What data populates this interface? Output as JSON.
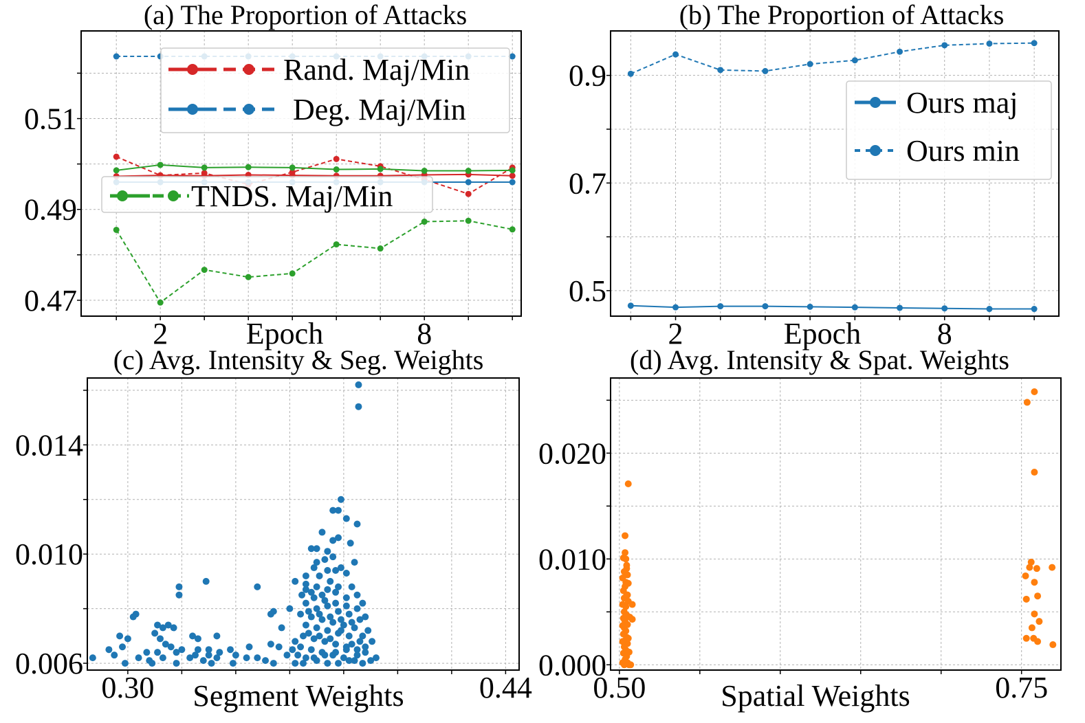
{
  "colors": {
    "red": "#d62728",
    "blue": "#1f77b4",
    "green": "#2ca02c",
    "orange": "#ff7f0e"
  },
  "chart_data": [
    {
      "type": "line",
      "title": "(a) The Proportion of Attacks",
      "xlabel": "Epoch",
      "ylabel": "",
      "x": [
        1,
        2,
        3,
        4,
        5,
        6,
        7,
        8,
        9,
        10
      ],
      "xticks": [
        "2",
        "8"
      ],
      "xtick_values": [
        2,
        8
      ],
      "yticks": [
        "0.47",
        "0.49",
        "0.51"
      ],
      "ytick_values": [
        0.47,
        0.49,
        0.51
      ],
      "xlim": [
        0.2,
        10.2
      ],
      "ylim": [
        0.4665,
        0.5293
      ],
      "grid": true,
      "legend": [
        "Rand. Maj/Min",
        "Deg. Maj/Min",
        "TNDS. Maj/Min"
      ],
      "series": [
        {
          "color": "red",
          "style": "solid",
          "values": [
            0.4973,
            0.4975,
            0.4974,
            0.4976,
            0.4975,
            0.4974,
            0.4974,
            0.4976,
            0.4977,
            0.4974
          ]
        },
        {
          "color": "red",
          "style": "dashed",
          "values": [
            0.5016,
            0.4975,
            0.498,
            0.4955,
            0.4982,
            0.5011,
            0.4995,
            0.4966,
            0.4934,
            0.4992
          ]
        },
        {
          "color": "blue",
          "style": "solid",
          "values": [
            0.496,
            0.496,
            0.496,
            0.496,
            0.496,
            0.496,
            0.496,
            0.496,
            0.496,
            0.496
          ]
        },
        {
          "color": "blue",
          "style": "dashed",
          "values": [
            0.5237,
            0.5237,
            0.5237,
            0.5237,
            0.5237,
            0.5237,
            0.5237,
            0.5237,
            0.5237,
            0.5237
          ]
        },
        {
          "color": "green",
          "style": "solid",
          "values": [
            0.4986,
            0.4998,
            0.4992,
            0.4993,
            0.4992,
            0.4988,
            0.4989,
            0.4985,
            0.4985,
            0.4986
          ]
        },
        {
          "color": "green",
          "style": "dashed",
          "values": [
            0.4855,
            0.4695,
            0.4767,
            0.4751,
            0.4759,
            0.4823,
            0.4814,
            0.4873,
            0.4875,
            0.4856
          ]
        }
      ]
    },
    {
      "type": "line",
      "title": "(b) The Proportion of Attacks",
      "xlabel": "Epoch",
      "ylabel": "",
      "x": [
        1,
        2,
        3,
        4,
        5,
        6,
        7,
        8,
        9,
        10
      ],
      "xticks": [
        "2",
        "8"
      ],
      "xtick_values": [
        2,
        8
      ],
      "yticks": [
        "0.5",
        "0.7",
        "0.9"
      ],
      "ytick_values": [
        0.5,
        0.7,
        0.9
      ],
      "xlim": [
        0.55,
        10.55
      ],
      "ylim": [
        0.4526,
        0.9826
      ],
      "grid": true,
      "legend": [
        "Ours maj",
        "Ours min"
      ],
      "series": [
        {
          "name": "Ours maj",
          "color": "blue",
          "style": "solid",
          "values": [
            0.472,
            0.469,
            0.471,
            0.471,
            0.47,
            0.469,
            0.468,
            0.467,
            0.466,
            0.466
          ]
        },
        {
          "name": "Ours min",
          "color": "blue",
          "style": "dashed",
          "values": [
            0.903,
            0.939,
            0.91,
            0.908,
            0.921,
            0.928,
            0.944,
            0.956,
            0.959,
            0.96
          ]
        }
      ]
    },
    {
      "type": "scatter",
      "title": "(c) Avg. Intensity & Seg. Weights",
      "xlabel": "Segment Weights",
      "ylabel": "",
      "xticks": [
        "0.30",
        "0.44"
      ],
      "xtick_values": [
        0.3,
        0.44
      ],
      "yticks": [
        "0.006",
        "0.010",
        "0.014"
      ],
      "ytick_values": [
        0.006,
        0.01,
        0.014
      ],
      "xlim": [
        0.285,
        0.445
      ],
      "ylim": [
        0.00575,
        0.01645
      ],
      "grid": true,
      "color": "blue",
      "points": [
        [
          0.3855,
          0.0162
        ],
        [
          0.3855,
          0.0154
        ],
        [
          0.379,
          0.012
        ],
        [
          0.378,
          0.0116
        ],
        [
          0.376,
          0.0116
        ],
        [
          0.381,
          0.0113
        ],
        [
          0.385,
          0.0111
        ],
        [
          0.372,
          0.0108
        ],
        [
          0.376,
          0.0105
        ],
        [
          0.378,
          0.0106
        ],
        [
          0.3825,
          0.0104
        ],
        [
          0.37,
          0.0102
        ],
        [
          0.368,
          0.0102
        ],
        [
          0.374,
          0.0101
        ],
        [
          0.37,
          0.0097
        ],
        [
          0.373,
          0.0098
        ],
        [
          0.379,
          0.0095
        ],
        [
          0.384,
          0.0097
        ],
        [
          0.377,
          0.0094
        ],
        [
          0.381,
          0.0093
        ],
        [
          0.371,
          0.0092
        ],
        [
          0.362,
          0.009
        ],
        [
          0.366,
          0.0089
        ],
        [
          0.375,
          0.009
        ],
        [
          0.383,
          0.0088
        ],
        [
          0.3645,
          0.0085
        ],
        [
          0.368,
          0.0086
        ],
        [
          0.372,
          0.0085
        ],
        [
          0.377,
          0.0086
        ],
        [
          0.381,
          0.0084
        ],
        [
          0.385,
          0.0085
        ],
        [
          0.387,
          0.0082
        ],
        [
          0.388,
          0.0077
        ],
        [
          0.36,
          0.008
        ],
        [
          0.354,
          0.0079
        ],
        [
          0.357,
          0.0073
        ],
        [
          0.362,
          0.0068
        ],
        [
          0.356,
          0.0066
        ],
        [
          0.359,
          0.0063
        ],
        [
          0.366,
          0.0082
        ],
        [
          0.37,
          0.008
        ],
        [
          0.374,
          0.0081
        ],
        [
          0.378,
          0.0079
        ],
        [
          0.382,
          0.0078
        ],
        [
          0.386,
          0.0076
        ],
        [
          0.389,
          0.0072
        ],
        [
          0.3905,
          0.0068
        ],
        [
          0.392,
          0.0062
        ],
        [
          0.364,
          0.0078
        ],
        [
          0.368,
          0.0077
        ],
        [
          0.372,
          0.0076
        ],
        [
          0.376,
          0.0075
        ],
        [
          0.38,
          0.0074
        ],
        [
          0.384,
          0.0073
        ],
        [
          0.387,
          0.007
        ],
        [
          0.366,
          0.0074
        ],
        [
          0.37,
          0.0073
        ],
        [
          0.374,
          0.0072
        ],
        [
          0.378,
          0.0071
        ],
        [
          0.382,
          0.007
        ],
        [
          0.386,
          0.0068
        ],
        [
          0.365,
          0.007
        ],
        [
          0.369,
          0.0069
        ],
        [
          0.373,
          0.0068
        ],
        [
          0.377,
          0.0067
        ],
        [
          0.381,
          0.0066
        ],
        [
          0.385,
          0.0065
        ],
        [
          0.388,
          0.0064
        ],
        [
          0.364,
          0.0066
        ],
        [
          0.368,
          0.0065
        ],
        [
          0.372,
          0.0064
        ],
        [
          0.376,
          0.0063
        ],
        [
          0.38,
          0.0062
        ],
        [
          0.384,
          0.0061
        ],
        [
          0.387,
          0.006
        ],
        [
          0.366,
          0.0062
        ],
        [
          0.37,
          0.0061
        ],
        [
          0.374,
          0.006
        ],
        [
          0.378,
          0.006
        ],
        [
          0.382,
          0.0061
        ],
        [
          0.365,
          0.006
        ],
        [
          0.369,
          0.0062
        ],
        [
          0.373,
          0.0063
        ],
        [
          0.377,
          0.0064
        ],
        [
          0.381,
          0.0065
        ],
        [
          0.385,
          0.0063
        ],
        [
          0.388,
          0.0066
        ],
        [
          0.39,
          0.0061
        ],
        [
          0.363,
          0.0063
        ],
        [
          0.362,
          0.006
        ],
        [
          0.361,
          0.0065
        ],
        [
          0.367,
          0.0071
        ],
        [
          0.371,
          0.007
        ],
        [
          0.375,
          0.0069
        ],
        [
          0.379,
          0.0072
        ],
        [
          0.383,
          0.0067
        ],
        [
          0.367,
          0.0079
        ],
        [
          0.371,
          0.0078
        ],
        [
          0.375,
          0.0077
        ],
        [
          0.379,
          0.0076
        ],
        [
          0.383,
          0.0075
        ],
        [
          0.369,
          0.0084
        ],
        [
          0.373,
          0.0083
        ],
        [
          0.377,
          0.0082
        ],
        [
          0.381,
          0.0081
        ],
        [
          0.385,
          0.008
        ],
        [
          0.37,
          0.0088
        ],
        [
          0.374,
          0.0087
        ],
        [
          0.378,
          0.0088
        ],
        [
          0.366,
          0.0087
        ],
        [
          0.376,
          0.0099
        ],
        [
          0.369,
          0.0095
        ],
        [
          0.374,
          0.0094
        ],
        [
          0.366,
          0.0092
        ],
        [
          0.319,
          0.0085
        ],
        [
          0.319,
          0.0088
        ],
        [
          0.329,
          0.009
        ],
        [
          0.348,
          0.0088
        ],
        [
          0.353,
          0.0078
        ],
        [
          0.303,
          0.0078
        ],
        [
          0.302,
          0.0077
        ],
        [
          0.311,
          0.0074
        ],
        [
          0.313,
          0.0073
        ],
        [
          0.315,
          0.0074
        ],
        [
          0.317,
          0.0073
        ],
        [
          0.324,
          0.007
        ],
        [
          0.326,
          0.0069
        ],
        [
          0.333,
          0.007
        ],
        [
          0.297,
          0.007
        ],
        [
          0.3,
          0.0069
        ],
        [
          0.31,
          0.0071
        ],
        [
          0.312,
          0.0069
        ],
        [
          0.314,
          0.0067
        ],
        [
          0.316,
          0.0066
        ],
        [
          0.32,
          0.0065
        ],
        [
          0.326,
          0.0065
        ],
        [
          0.33,
          0.0065
        ],
        [
          0.338,
          0.0065
        ],
        [
          0.345,
          0.0066
        ],
        [
          0.353,
          0.0067
        ],
        [
          0.293,
          0.0065
        ],
        [
          0.298,
          0.0066
        ],
        [
          0.307,
          0.0064
        ],
        [
          0.311,
          0.0064
        ],
        [
          0.318,
          0.0064
        ],
        [
          0.325,
          0.0063
        ],
        [
          0.33,
          0.0063
        ],
        [
          0.334,
          0.0064
        ],
        [
          0.34,
          0.0063
        ],
        [
          0.348,
          0.0062
        ],
        [
          0.287,
          0.0062
        ],
        [
          0.295,
          0.0063
        ],
        [
          0.304,
          0.0062
        ],
        [
          0.308,
          0.0061
        ],
        [
          0.313,
          0.0062
        ],
        [
          0.323,
          0.0062
        ],
        [
          0.328,
          0.0061
        ],
        [
          0.333,
          0.0062
        ],
        [
          0.344,
          0.0062
        ],
        [
          0.351,
          0.0061
        ],
        [
          0.299,
          0.006
        ],
        [
          0.309,
          0.006
        ],
        [
          0.318,
          0.006
        ],
        [
          0.331,
          0.006
        ],
        [
          0.339,
          0.006
        ],
        [
          0.354,
          0.006
        ]
      ]
    },
    {
      "type": "scatter",
      "title": "(d) Avg. Intensity & Spat. Weights",
      "xlabel": "Spatial Weights",
      "ylabel": "",
      "xticks": [
        "0.50",
        "0.75"
      ],
      "xtick_values": [
        0.5,
        0.75
      ],
      "yticks": [
        "0.000",
        "0.010",
        "0.020"
      ],
      "ytick_values": [
        0.0,
        0.01,
        0.02
      ],
      "xlim": [
        0.4945,
        0.7745
      ],
      "ylim": [
        -0.0005,
        0.0271
      ],
      "grid": true,
      "color": "orange",
      "points": [
        [
          0.5055,
          0.0171
        ],
        [
          0.5035,
          0.0122
        ],
        [
          0.5025,
          0.0101
        ],
        [
          0.504,
          0.01
        ],
        [
          0.5045,
          0.0091
        ],
        [
          0.503,
          0.0088
        ],
        [
          0.505,
          0.0085
        ],
        [
          0.502,
          0.0082
        ],
        [
          0.504,
          0.0078
        ],
        [
          0.5035,
          0.0074
        ],
        [
          0.5025,
          0.007
        ],
        [
          0.5045,
          0.0066
        ],
        [
          0.503,
          0.0063
        ],
        [
          0.5055,
          0.006
        ],
        [
          0.502,
          0.0057
        ],
        [
          0.504,
          0.0055
        ],
        [
          0.508,
          0.0057
        ],
        [
          0.5065,
          0.0045
        ],
        [
          0.508,
          0.0043
        ],
        [
          0.503,
          0.005
        ],
        [
          0.5045,
          0.0047
        ],
        [
          0.5025,
          0.0044
        ],
        [
          0.5035,
          0.0041
        ],
        [
          0.505,
          0.0038
        ],
        [
          0.503,
          0.0035
        ],
        [
          0.504,
          0.0032
        ],
        [
          0.5025,
          0.0029
        ],
        [
          0.5045,
          0.0026
        ],
        [
          0.5035,
          0.0023
        ],
        [
          0.505,
          0.002
        ],
        [
          0.503,
          0.0017
        ],
        [
          0.504,
          0.0014
        ],
        [
          0.5025,
          0.0011
        ],
        [
          0.5045,
          0.0008
        ],
        [
          0.5035,
          0.0005
        ],
        [
          0.505,
          0.0002
        ],
        [
          0.503,
          0.0
        ],
        [
          0.506,
          0.0
        ],
        [
          0.507,
          0.0
        ],
        [
          0.5055,
          0.0025
        ],
        [
          0.506,
          0.0012
        ],
        [
          0.502,
          0.0002
        ],
        [
          0.505,
          0.0066
        ],
        [
          0.5055,
          0.0077
        ],
        [
          0.502,
          0.0037
        ],
        [
          0.502,
          0.0022
        ],
        [
          0.5045,
          0.0094
        ],
        [
          0.5035,
          0.0106
        ],
        [
          0.758,
          0.0258
        ],
        [
          0.7535,
          0.0248
        ],
        [
          0.758,
          0.0182
        ],
        [
          0.756,
          0.0097
        ],
        [
          0.755,
          0.0092
        ],
        [
          0.7595,
          0.0091
        ],
        [
          0.7525,
          0.0084
        ],
        [
          0.758,
          0.0078
        ],
        [
          0.76,
          0.0065
        ],
        [
          0.753,
          0.0062
        ],
        [
          0.758,
          0.0048
        ],
        [
          0.761,
          0.0041
        ],
        [
          0.7565,
          0.0035
        ],
        [
          0.753,
          0.0025
        ],
        [
          0.7575,
          0.0025
        ],
        [
          0.76,
          0.0022
        ],
        [
          0.769,
          0.0092
        ],
        [
          0.7695,
          0.0019
        ]
      ]
    }
  ]
}
